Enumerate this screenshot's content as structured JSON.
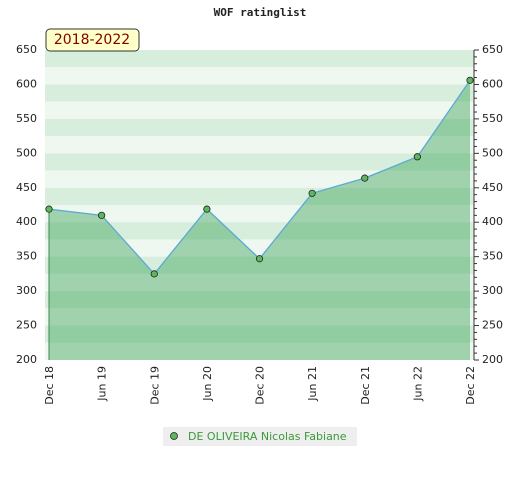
{
  "chart_data": {
    "type": "area",
    "title": "WOF ratinglist",
    "badge": "2018-2022",
    "categories": [
      "Dec 18",
      "Jun 19",
      "Dec 19",
      "Jun 20",
      "Dec 20",
      "Jun 21",
      "Dec 21",
      "Jun 22",
      "Dec 22"
    ],
    "series": [
      {
        "name": "DE OLIVEIRA Nicolas Fabiane",
        "color": "#5aa9d6",
        "marker_color": "#5cb85c",
        "values": [
          419,
          410,
          325,
          419,
          347,
          442,
          464,
          495,
          606
        ]
      }
    ],
    "ylim": [
      200,
      650
    ],
    "yticks": [
      200,
      250,
      300,
      350,
      400,
      450,
      500,
      550,
      600,
      650
    ],
    "grid": true
  }
}
